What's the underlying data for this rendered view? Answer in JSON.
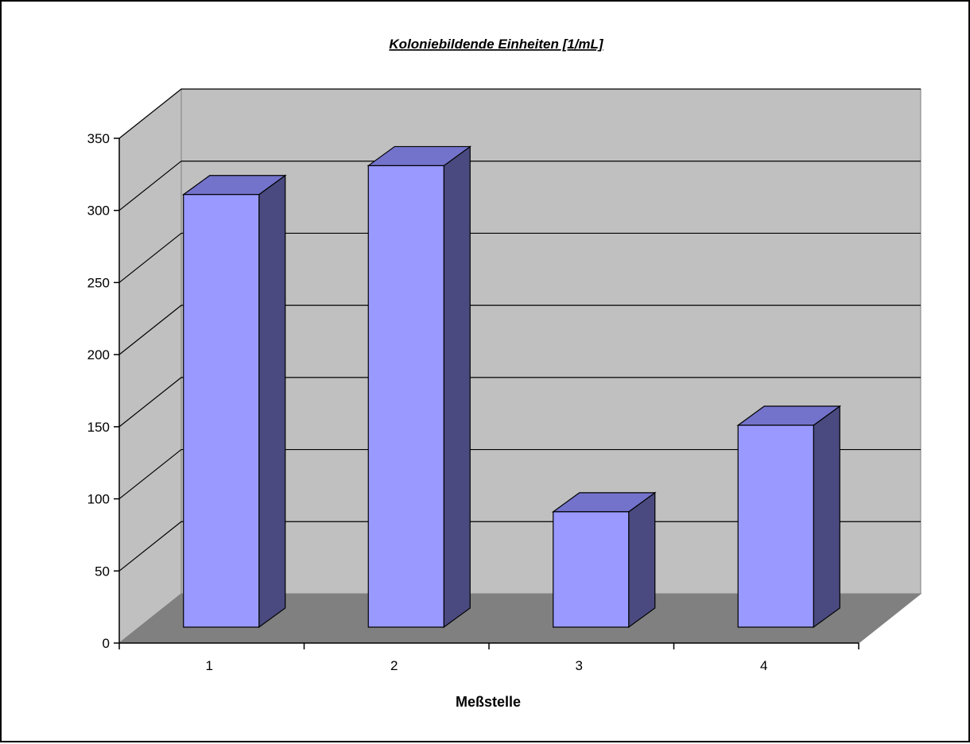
{
  "chart_data": {
    "type": "bar",
    "title": "Koloniebildende Einheiten [1/mL]",
    "xlabel": "Meßstelle",
    "ylabel": "",
    "categories": [
      "1",
      "2",
      "3",
      "4"
    ],
    "values": [
      300,
      320,
      80,
      140
    ],
    "ylim": [
      0,
      350
    ],
    "yticks": [
      "0",
      "50",
      "100",
      "150",
      "200",
      "250",
      "300",
      "350"
    ],
    "grid": true,
    "legend": "none",
    "three_d": true
  },
  "colors": {
    "bar_front": "#9999ff",
    "bar_side": "#4a4a80",
    "bar_top": "#7373cc",
    "back_wall": "#c0c0c0",
    "side_wall": "#c0c0c0",
    "floor": "#808080",
    "gridline": "#000000"
  }
}
